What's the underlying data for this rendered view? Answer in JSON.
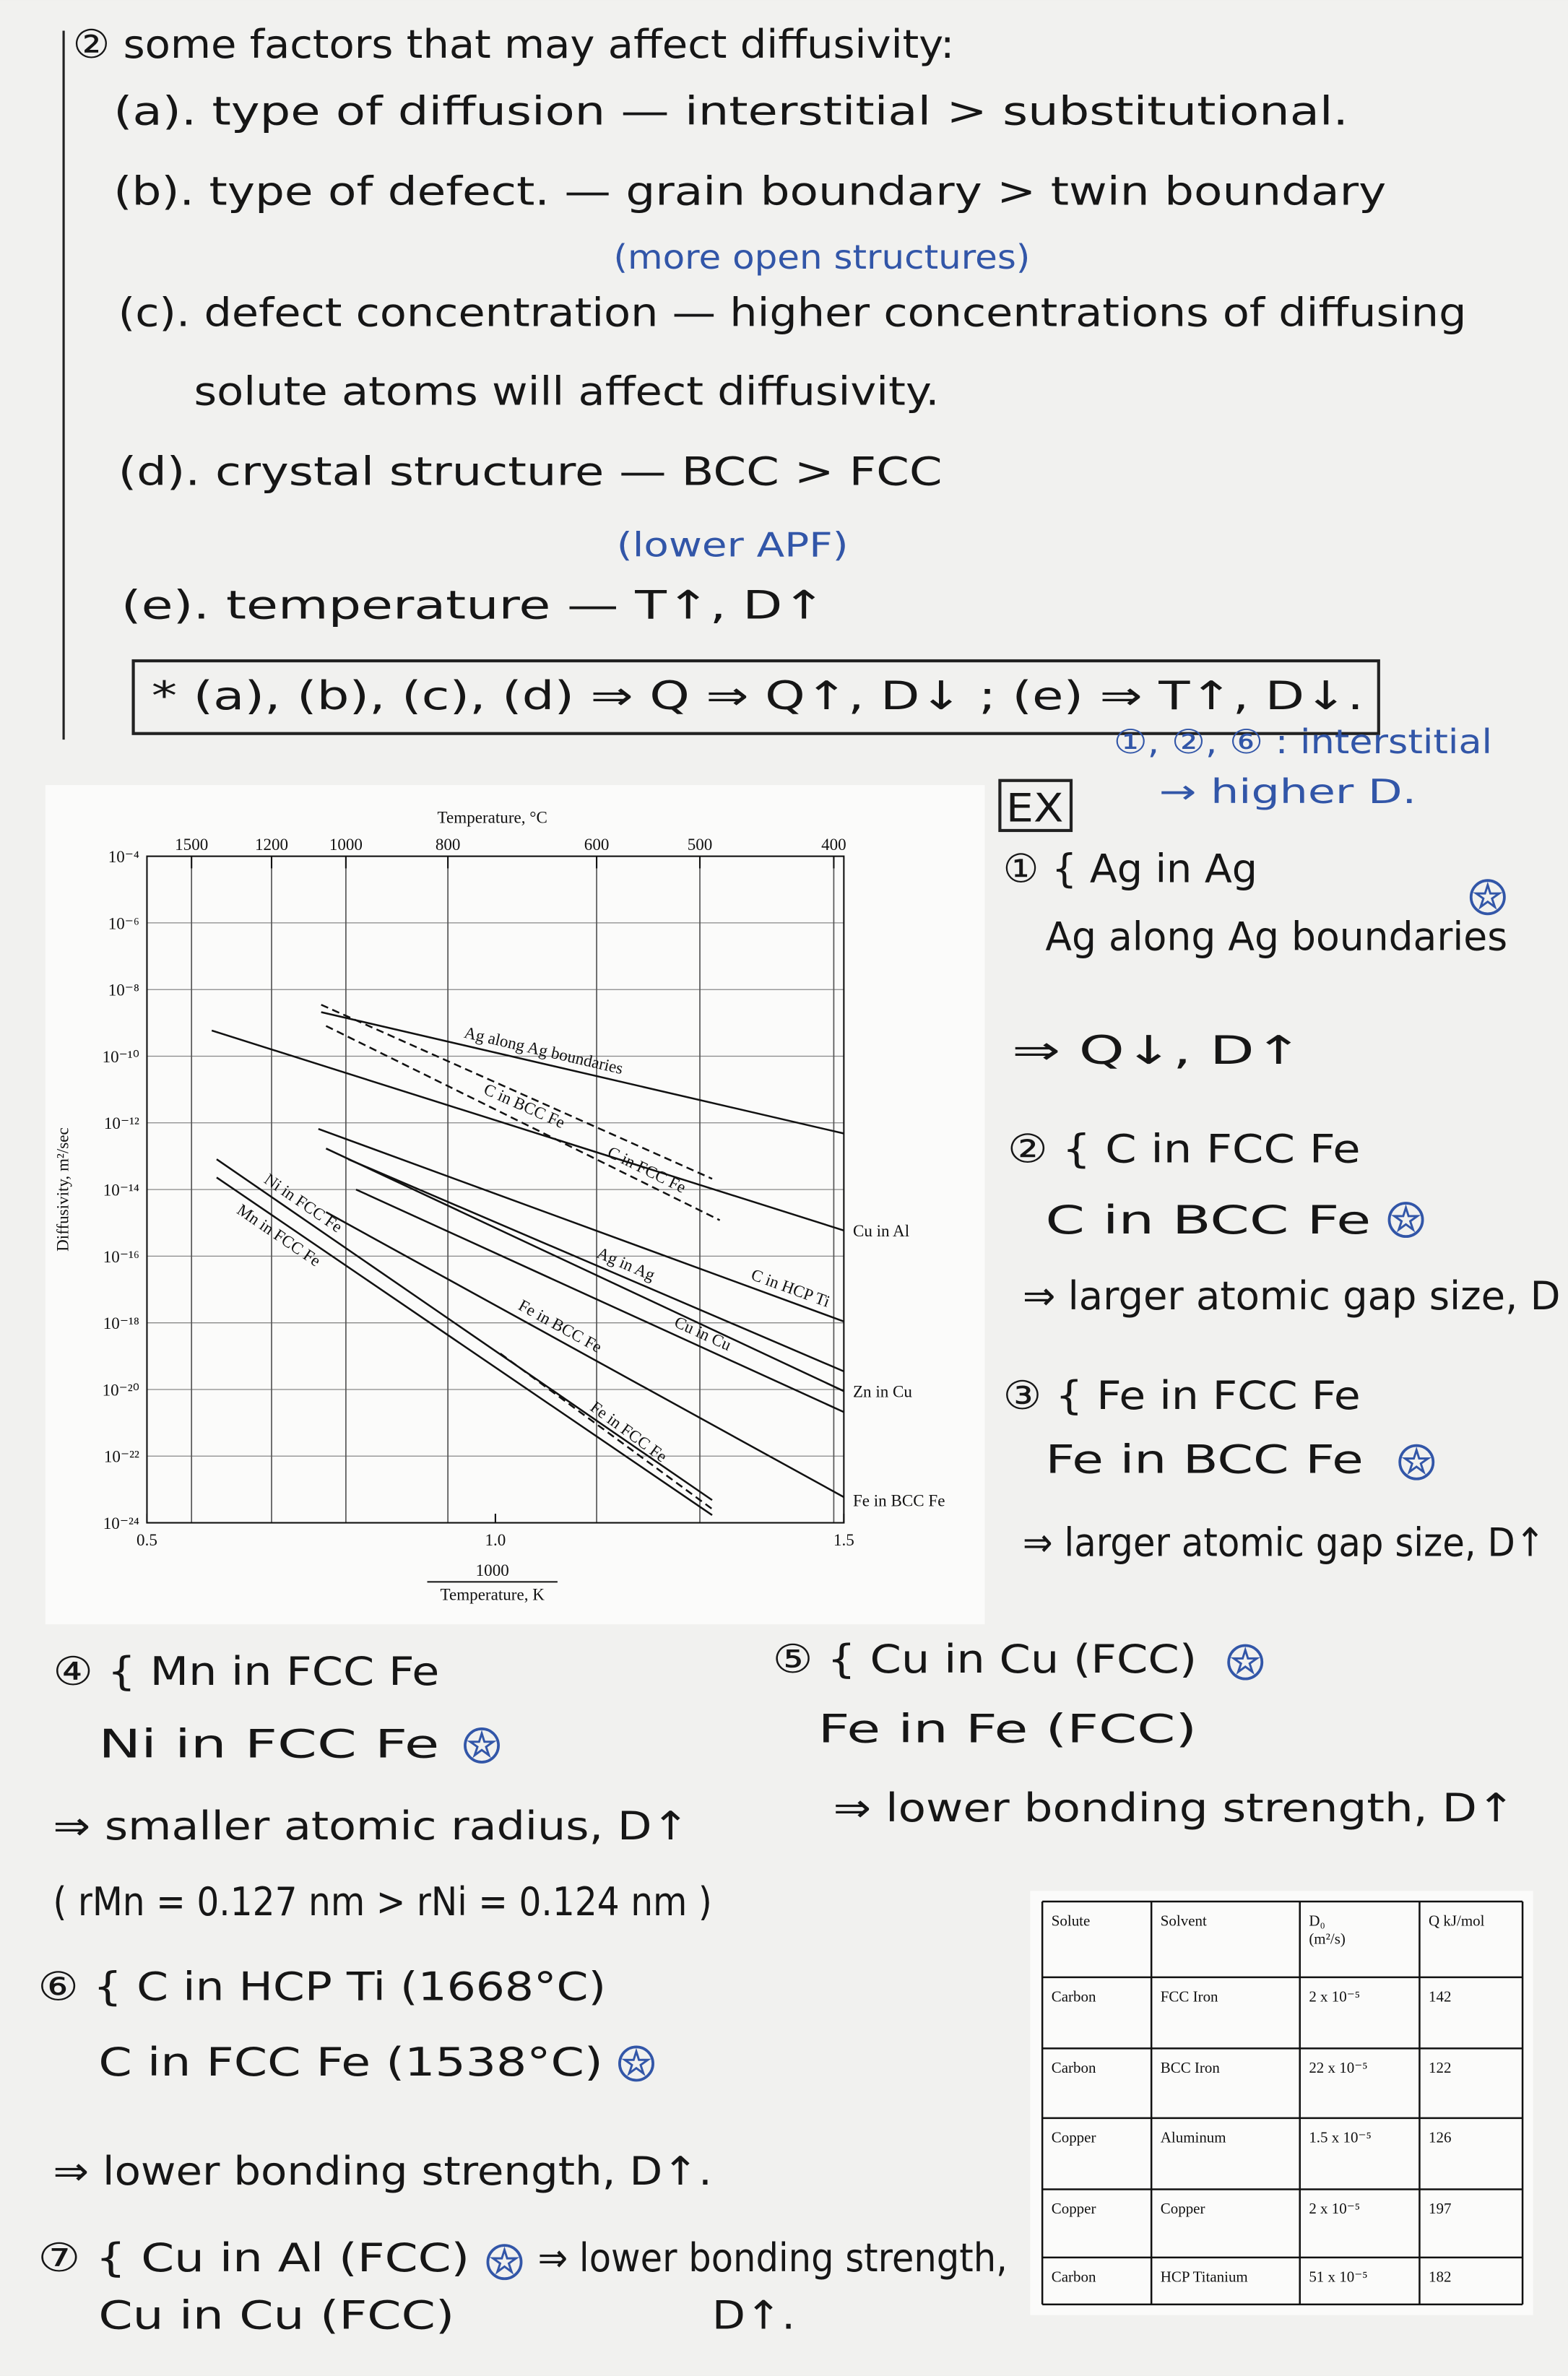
{
  "notes": [
    "② some factors that may affect diffusivity:",
    "(a). type of diffusion — interstitial > substitutional.",
    "(b). type of defect. — grain boundary > twin boundary",
    "(more open structures)",
    "(c). defect concentration — higher concentrations of diffusing",
    "solute atoms will affect diffusivity.",
    "(d). crystal structure — BCC > FCC",
    "(lower APF)",
    "(e). temperature — T↑, D↑",
    "* (a), (b), (c), (d) ⇒ Q ⇒ Q↑, D↓ ; (e) ⇒ T↑, D↓.",
    "①, ②, ⑥ : interstitial",
    "→ higher D.",
    "EX",
    "① { Ag in Ag",
    "Ag along Ag boundaries",
    "⇒ Q↓, D↑",
    "② { C in FCC Fe",
    "C in BCC Fe",
    "⇒ larger atomic gap size, D",
    "③ { Fe in FCC Fe",
    "Fe in BCC Fe",
    "⇒ larger atomic gap size, D↑",
    "④ { Mn in FCC Fe",
    "Ni in FCC Fe",
    "⇒ smaller atomic radius, D↑",
    "( rMn = 0.127 nm > rNi = 0.124 nm )",
    "⑥ { C in HCP Ti (1668°C)",
    "C in FCC Fe (1538°C)",
    "⇒ lower bonding strength, D↑.",
    "⑦ { Cu in Al (FCC)",
    "⇒ lower bonding strength,",
    "Cu in Cu (FCC)",
    "D↑.",
    "⑤ { Cu in Cu (FCC)",
    "Fe in Fe (FCC)",
    "⇒ lower bonding strength, D↑"
  ],
  "chart_data": {
    "type": "line",
    "xlabel_top": "Temperature, °C",
    "xlabel": {
      "numerator": "1000",
      "denominator": "Temperature, K"
    },
    "ylabel": "Diffusivity, m²/sec",
    "xlim": [
      0.5,
      1.5
    ],
    "xticks": [
      0.5,
      {
        "value": 1,
        "label": "1.0"
      },
      1.5
    ],
    "xticks_top": [
      1500,
      1200,
      1000,
      800,
      600,
      500,
      400
    ],
    "ylim": [
      1e-24,
      0.0001
    ],
    "log_scale_y": true,
    "yticks": [
      {
        "value": 0.0001,
        "label": "10⁻⁴"
      },
      {
        "value": 1e-06,
        "label": "10⁻⁶"
      },
      {
        "value": 1e-08,
        "label": "10⁻⁸"
      },
      {
        "value": 1e-10,
        "label": "10⁻¹⁰"
      },
      {
        "value": 1e-12,
        "label": "10⁻¹²"
      },
      {
        "value": 1e-14,
        "label": "10⁻¹⁴"
      },
      {
        "value": 1e-16,
        "label": "10⁻¹⁶"
      },
      {
        "value": 1e-18,
        "label": "10⁻¹⁸"
      },
      {
        "value": 1e-20,
        "label": "10⁻²⁰"
      },
      {
        "value": 1e-22,
        "label": "10⁻²²"
      },
      {
        "value": 1e-24,
        "label": "10⁻²⁴"
      }
    ],
    "grid": true,
    "series": [
      {
        "name": "Ag along Ag boundaries",
        "color": "#111111",
        "line_style": "solid",
        "x": [
          0.75,
          1.5
        ],
        "values": [
          2.1e-09,
          4.8e-13
        ]
      },
      {
        "name": "C in BCC Fe",
        "color": "#111111",
        "line_style": "dashed",
        "x": [
          0.75,
          1.311
        ],
        "values": [
          3.5e-09,
          2.1e-14
        ]
      },
      {
        "name": "C in FCC Fe",
        "color": "#111111",
        "line_style": "dashed",
        "x": [
          0.757,
          1.322
        ],
        "values": [
          8.1e-10,
          1.2e-15
        ]
      },
      {
        "name": "Cu in Al",
        "color": "#111111",
        "line_style": "solid",
        "x": [
          0.593,
          1.5
        ],
        "values": [
          5.9e-10,
          5.9e-16
        ]
      },
      {
        "name": "C in HCP Ti",
        "color": "#111111",
        "line_style": "solid",
        "x": [
          0.746,
          1.5
        ],
        "values": [
          6.6e-13,
          1.1e-18
        ]
      },
      {
        "name": "Ag in Ag",
        "color": "#111111",
        "line_style": "solid",
        "x": [
          0.789,
          1.5
        ],
        "values": [
          8.1e-14,
          3.5e-20
        ]
      },
      {
        "name": "Zn in Cu",
        "color": "#111111",
        "line_style": "solid",
        "x": [
          0.757,
          1.5
        ],
        "values": [
          1.7e-13,
          8.9e-21
        ]
      },
      {
        "name": "Cu in Cu",
        "color": "#111111",
        "line_style": "solid",
        "x": [
          0.8,
          1.5
        ],
        "values": [
          1e-14,
          2.1e-21
        ]
      },
      {
        "name": "Fe in BCC Fe",
        "color": "#111111",
        "line_style": "solid",
        "x": [
          0.757,
          1.5
        ],
        "values": [
          2.1e-15,
          5.9e-24
        ]
      },
      {
        "name": "Ni in FCC Fe",
        "color": "#111111",
        "line_style": "solid",
        "x": [
          0.6,
          1.311
        ],
        "values": [
          8.1e-14,
          4.8e-24
        ]
      },
      {
        "name": "Mn in FCC Fe",
        "color": "#111111",
        "line_style": "solid",
        "x": [
          0.6,
          1.311
        ],
        "values": [
          2.3e-14,
          1.7e-24
        ]
      },
      {
        "name": "Fe in FCC Fe",
        "color": "#111111",
        "line_style": "dashed",
        "x": [
          1.007,
          1.311
        ],
        "values": [
          1.2e-19,
          2.6e-24
        ]
      }
    ]
  },
  "table": {
    "header": [
      "Solute",
      "Solvent",
      {
        "symbol": "D₀",
        "unit": "(m²/s)"
      },
      "Q kJ/mol"
    ],
    "rows": [
      [
        "Carbon",
        "FCC Iron",
        "2 x 10⁻⁵",
        "142"
      ],
      [
        "Carbon",
        "BCC Iron",
        "22 x 10⁻⁵",
        "122"
      ],
      [
        "Copper",
        "Aluminum",
        "1.5 x 10⁻⁵",
        "126"
      ],
      [
        "Copper",
        "Copper",
        "2 x 10⁻⁵",
        "197"
      ],
      [
        "Carbon",
        "HCP Titanium",
        "51 x 10⁻⁵",
        "182"
      ]
    ]
  }
}
